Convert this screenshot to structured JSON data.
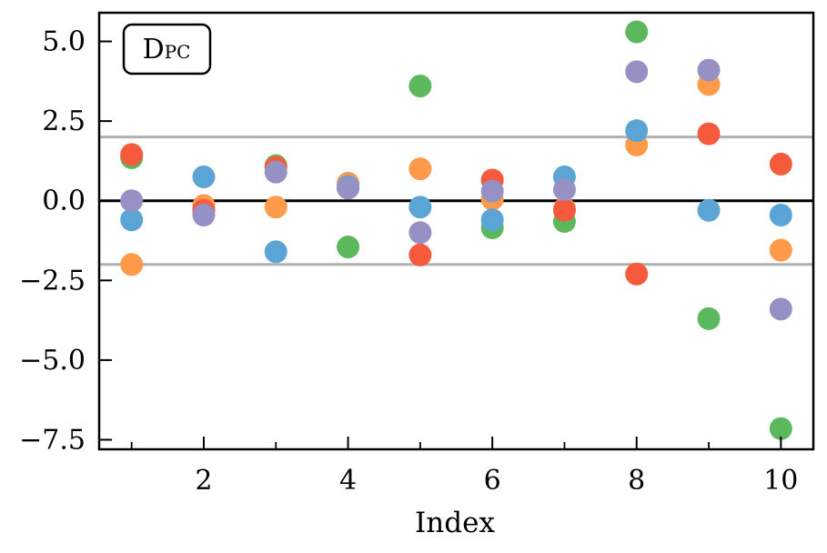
{
  "chart_data": {
    "type": "scatter",
    "title": "",
    "xlabel": "Index",
    "ylabel": "",
    "annotation": {
      "main": "D",
      "sub": "PC"
    },
    "xlim": [
      0.55,
      10.45
    ],
    "ylim": [
      -7.8,
      5.9
    ],
    "x_ticks": [
      2,
      4,
      6,
      8,
      10
    ],
    "x_tick_labels": [
      "2",
      "4",
      "6",
      "8",
      "10"
    ],
    "x_minor_ticks": [
      1,
      3,
      5,
      7,
      9
    ],
    "y_ticks": [
      5.0,
      2.5,
      0.0,
      -2.5,
      -5.0,
      -7.5
    ],
    "y_tick_labels": [
      "5.0",
      "2.5",
      "0.0",
      "−2.5",
      "−5.0",
      "−7.5"
    ],
    "reference_lines": [
      {
        "y": 0.0,
        "color": "#000000"
      },
      {
        "y": 2.0,
        "color": "#b0b0b0"
      },
      {
        "y": -2.0,
        "color": "#b0b0b0"
      }
    ],
    "grid": false,
    "legend": "none",
    "x": [
      1,
      2,
      3,
      4,
      5,
      6,
      7,
      8,
      9,
      10
    ],
    "series": [
      {
        "color": "#5cb85c",
        "values": [
          1.35,
          -0.3,
          1.1,
          -1.45,
          3.6,
          -0.85,
          -0.65,
          5.3,
          -3.7,
          -7.15
        ]
      },
      {
        "color": "#ff9a4a",
        "values": [
          -2.0,
          -0.15,
          -0.2,
          0.55,
          1.0,
          0.05,
          -0.25,
          1.75,
          3.65,
          -1.55
        ]
      },
      {
        "color": "#f55a3c",
        "values": [
          1.45,
          -0.3,
          1.05,
          0.4,
          -1.7,
          0.65,
          -0.3,
          -2.3,
          2.1,
          1.15
        ]
      },
      {
        "color": "#5ba4d6",
        "values": [
          -0.6,
          0.75,
          -1.6,
          0.45,
          -0.2,
          -0.6,
          0.75,
          2.2,
          -0.3,
          -0.45
        ]
      },
      {
        "color": "#9591c5",
        "values": [
          0.0,
          -0.45,
          0.9,
          0.4,
          -1.0,
          0.3,
          0.35,
          4.05,
          4.1,
          -3.4
        ]
      }
    ]
  }
}
